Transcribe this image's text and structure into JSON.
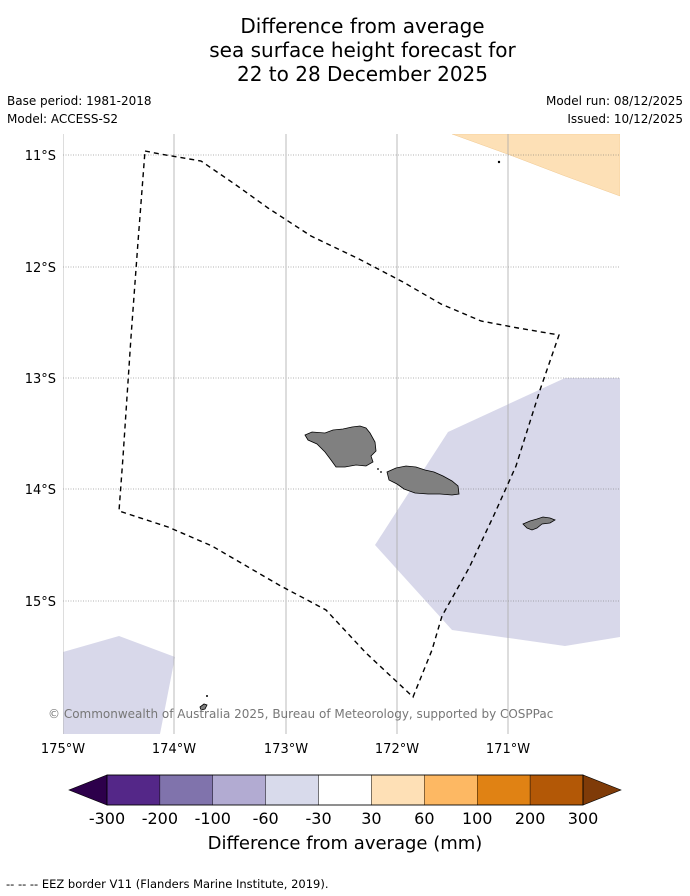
{
  "title": {
    "line1": "Difference from average",
    "line2": "sea surface height forecast for",
    "line3": "22 to 28 December 2025"
  },
  "meta": {
    "base_period": "Base period: 1981-2018",
    "model": "Model: ACCESS-S2",
    "model_run": "Model run: 08/12/2025",
    "issued": "Issued: 10/12/2025"
  },
  "axes": {
    "lat_labels": [
      "11°S",
      "12°S",
      "13°S",
      "14°S",
      "15°S"
    ],
    "lon_labels": [
      "175°W",
      "174°W",
      "173°W",
      "172°W",
      "171°W"
    ]
  },
  "colors": {
    "land": "#808080",
    "light_lavender": "#d8d8ea",
    "light_orange": "#fde0b6"
  },
  "credit": "© Commonwealth of Australia 2025, Bureau of Meteorology, supported by COSPPac",
  "colorbar": {
    "title": "Difference from average (mm)",
    "labels": [
      "-300",
      "-200",
      "-100",
      "-60",
      "-30",
      "30",
      "60",
      "100",
      "200",
      "300"
    ],
    "colors": [
      "#2d004b",
      "#542788",
      "#8073ac",
      "#b2abd2",
      "#d8daeb",
      "#ffffff",
      "#fee0b6",
      "#fdb863",
      "#e08214",
      "#b35806",
      "#7f3b08"
    ]
  },
  "footnote": "-- -- -- EEZ border V11 (Flanders Marine Institute, 2019)."
}
